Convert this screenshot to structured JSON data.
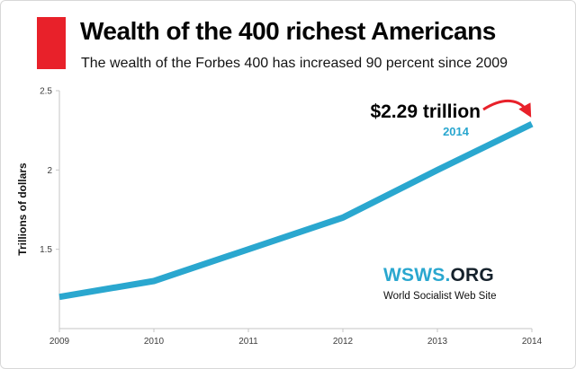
{
  "header": {
    "title": "Wealth of the 400 richest Americans",
    "subtitle": "The wealth of the Forbes 400 has increased 90 percent since 2009"
  },
  "annotation": {
    "value_label": "$2.29 trillion",
    "year_label": "2014"
  },
  "logo": {
    "wsws_label": "WSWS.",
    "org_label": "ORG",
    "tagline": "World Socialist Web Site"
  },
  "chart_data": {
    "type": "line",
    "title": "Wealth of the 400 richest Americans",
    "categories": [
      "2009",
      "2010",
      "2011",
      "2012",
      "2013",
      "2014"
    ],
    "values": [
      1.2,
      1.3,
      1.5,
      1.7,
      2.0,
      2.29
    ],
    "xlabel": "",
    "ylabel": "Trillions of dollars",
    "ylim": [
      1.0,
      2.5
    ],
    "y_ticks": [
      1.5,
      2,
      2.5
    ],
    "grid": false,
    "legend": "none",
    "line_color": "#2aa7cf",
    "annotation": "$2.29 trillion (2014)",
    "annotation_arrow_color": "#e8212a"
  },
  "colors": {
    "accent_red": "#e8212a",
    "line_blue": "#2aa7cf",
    "dark_navy": "#16222c",
    "axis_gray": "#c6c6c6",
    "tick_text": "#3d3d3d"
  }
}
